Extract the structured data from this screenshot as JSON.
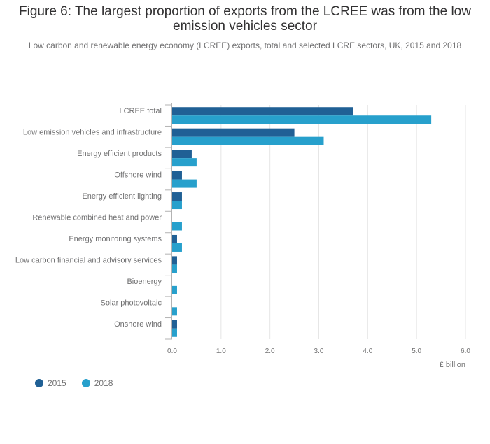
{
  "header": {
    "title": "Figure 6: The largest proportion of exports from the LCREE was from the low emission vehicles sector",
    "subtitle": "Low carbon and renewable energy economy (LCREE) exports, total and selected LCRE sectors, UK, 2015 and 2018"
  },
  "chart_data": {
    "type": "bar",
    "orientation": "horizontal",
    "categories": [
      "LCREE total",
      "Low emission vehicles and infrastructure",
      "Energy efficient products",
      "Offshore wind",
      "Energy efficient lighting",
      "Renewable combined heat and power",
      "Energy monitoring systems",
      "Low carbon financial and advisory services",
      "Bioenergy",
      "Solar photovoltaic",
      "Onshore wind"
    ],
    "series": [
      {
        "name": "2015",
        "color": "#206095",
        "values": [
          3.7,
          2.5,
          0.4,
          0.2,
          0.2,
          0.0,
          0.1,
          0.1,
          0.0,
          0.0,
          0.1
        ]
      },
      {
        "name": "2018",
        "color": "#27a0cc",
        "values": [
          5.3,
          3.1,
          0.5,
          0.5,
          0.2,
          0.2,
          0.2,
          0.1,
          0.1,
          0.1,
          0.1
        ]
      }
    ],
    "xlim": [
      0,
      6
    ],
    "xticks": [
      "0.0",
      "1.0",
      "2.0",
      "3.0",
      "4.0",
      "5.0",
      "6.0"
    ],
    "xlabel": "£ billion",
    "grid": true,
    "legend_position": "bottom-left"
  }
}
